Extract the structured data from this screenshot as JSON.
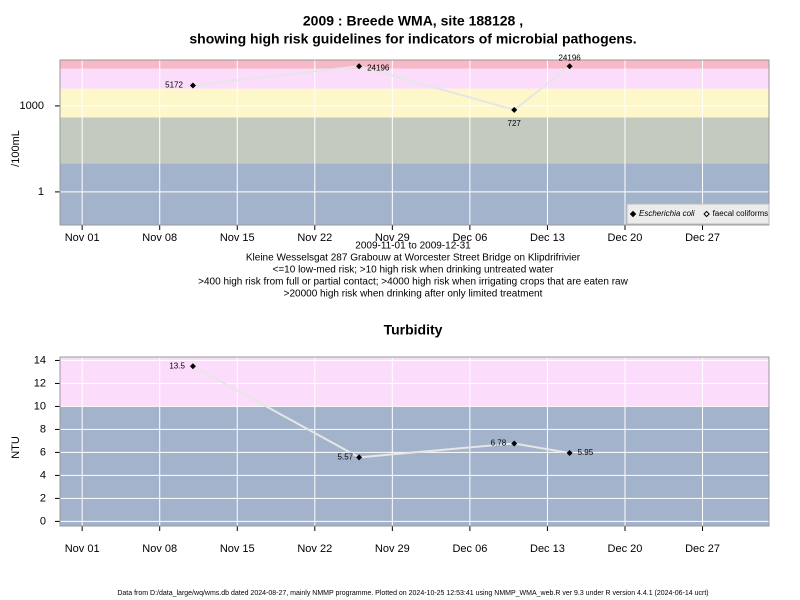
{
  "chart_data": [
    {
      "type": "line",
      "title": [
        "2009 : Breede WMA, site 188128 ,",
        "showing high risk guidelines for indicators of microbial pathogens."
      ],
      "y_label": "/100mL",
      "log_y": true,
      "x": [
        "2009-11-11",
        "2009-11-26",
        "2009-12-10",
        "2009-12-15"
      ],
      "series": [
        {
          "name": "Escherichia coli",
          "color": "#000000",
          "values": [
            5172,
            24196,
            727,
            24196
          ]
        },
        {
          "name": "faecal coliforms",
          "color": "#000000",
          "values": [
            null,
            null,
            null,
            null
          ]
        }
      ],
      "xlim": [
        "2009-10-30",
        "2010-01-02"
      ],
      "xticks": [
        {
          "value": "2009-11-01",
          "label": "Nov 01"
        },
        {
          "value": "2009-11-08",
          "label": "Nov 08"
        },
        {
          "value": "2009-11-15",
          "label": "Nov 15"
        },
        {
          "value": "2009-11-22",
          "label": "Nov 22"
        },
        {
          "value": "2009-11-29",
          "label": "Nov 29"
        },
        {
          "value": "2009-12-06",
          "label": "Dec 06"
        },
        {
          "value": "2009-12-13",
          "label": "Dec 13"
        },
        {
          "value": "2009-12-20",
          "label": "Dec 20"
        },
        {
          "value": "2009-12-27",
          "label": "Dec 27"
        }
      ],
      "ylim": [
        0.07,
        40000
      ],
      "yticks": [
        1,
        1000
      ],
      "bands": [
        {
          "from": 0.07,
          "to": 10,
          "color": "#a3b3cb"
        },
        {
          "from": 10,
          "to": 400,
          "color": "#c3cbc1"
        },
        {
          "from": 400,
          "to": 4000,
          "color": "#fdf7c9"
        },
        {
          "from": 4000,
          "to": 20000,
          "color": "#fbdcfb"
        },
        {
          "from": 20000,
          "to": 40000,
          "color": "#f7b9c7"
        }
      ],
      "grid": true,
      "legend": "bottom-right",
      "notes": [
        "2009-11-01 to 2009-12-31",
        "Kleine Wesselsgat 287 Grabouw at Worcester Street Bridge on Klipdrifrivier",
        "<=10 low-med risk; >10 high risk when drinking untreated water",
        ">400 high risk from full or partial contact; >4000 high risk when irrigating crops that are eaten raw",
        ">20000 high risk when drinking after only limited treatment"
      ]
    },
    {
      "type": "line",
      "title": [
        "Turbidity"
      ],
      "y_label": "NTU",
      "log_y": false,
      "x": [
        "2009-11-11",
        "2009-11-26",
        "2009-12-10",
        "2009-12-15"
      ],
      "series": [
        {
          "color": "#000000",
          "values": [
            13.5,
            5.57,
            6.78,
            5.95
          ]
        }
      ],
      "xlim": [
        "2009-10-30",
        "2010-01-02"
      ],
      "xticks": [
        {
          "value": "2009-11-01",
          "label": "Nov 01"
        },
        {
          "value": "2009-11-08",
          "label": "Nov 08"
        },
        {
          "value": "2009-11-15",
          "label": "Nov 15"
        },
        {
          "value": "2009-11-22",
          "label": "Nov 22"
        },
        {
          "value": "2009-11-29",
          "label": "Nov 29"
        },
        {
          "value": "2009-12-06",
          "label": "Dec 06"
        },
        {
          "value": "2009-12-13",
          "label": "Dec 13"
        },
        {
          "value": "2009-12-20",
          "label": "Dec 20"
        },
        {
          "value": "2009-12-27",
          "label": "Dec 27"
        }
      ],
      "ylim": [
        -0.4,
        14.3
      ],
      "yticks": [
        0,
        2,
        4,
        6,
        8,
        10,
        12,
        14
      ],
      "bands": [
        {
          "from": -0.4,
          "to": 10,
          "color": "#a3b3cb"
        },
        {
          "from": 10,
          "to": 14.3,
          "color": "#fbdcfb"
        }
      ],
      "grid": true
    }
  ],
  "footer": "Data from D:/data_large/wq/wms.db dated 2024-08-27, mainly NMMP programme. Plotted on 2024-10-25 12:53:41 using NMMP_WMA_web.R ver 9.3 under R version 4.4.1 (2024-06-14 ucrt)"
}
